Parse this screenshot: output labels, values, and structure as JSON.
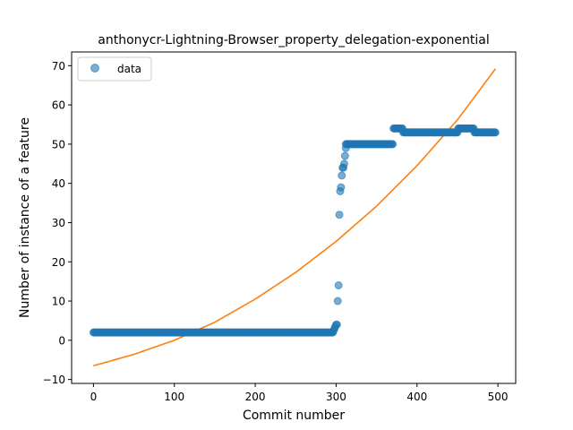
{
  "chart_data": {
    "type": "scatter",
    "title": "anthonycr-Lightning-Browser_property_delegation-exponential",
    "xlabel": "Commit number",
    "ylabel": "Number of instance of a feature",
    "xlim": [
      -27,
      522
    ],
    "ylim": [
      -11,
      73.5
    ],
    "xticks": [
      0,
      100,
      200,
      300,
      400,
      500
    ],
    "yticks": [
      -10,
      0,
      10,
      20,
      30,
      40,
      50,
      60,
      70
    ],
    "grid": false,
    "legend": {
      "position": "top-left",
      "entries": [
        "data"
      ]
    },
    "series": [
      {
        "name": "data",
        "kind": "scatter",
        "color": "#1f77b4",
        "segments": [
          {
            "x_start": 0,
            "x_end": 296,
            "y": 2
          },
          {
            "x_start": 312,
            "x_end": 370,
            "y": 50
          },
          {
            "x_start": 371,
            "x_end": 382,
            "y": 54
          },
          {
            "x_start": 383,
            "x_end": 450,
            "y": 53
          },
          {
            "x_start": 451,
            "x_end": 470,
            "y": 54
          },
          {
            "x_start": 471,
            "x_end": 497,
            "y": 53
          }
        ],
        "points": [
          [
            297,
            2.5
          ],
          [
            298,
            3
          ],
          [
            299,
            3.5
          ],
          [
            300,
            4
          ],
          [
            301,
            4
          ],
          [
            302,
            10
          ],
          [
            303,
            14
          ],
          [
            304,
            32
          ],
          [
            305,
            38
          ],
          [
            306,
            39
          ],
          [
            307,
            42
          ],
          [
            308,
            44
          ],
          [
            309,
            44
          ],
          [
            310,
            45
          ],
          [
            311,
            47
          ],
          [
            312,
            49
          ]
        ]
      },
      {
        "name": "",
        "kind": "line",
        "color": "#ff7f0e",
        "x_start": 0,
        "x_end": 497,
        "y_at": [
          [
            0,
            -6.5
          ],
          [
            50,
            -3.6
          ],
          [
            100,
            0
          ],
          [
            150,
            4.6
          ],
          [
            200,
            10.5
          ],
          [
            250,
            17.3
          ],
          [
            300,
            25.2
          ],
          [
            350,
            34.2
          ],
          [
            400,
            44.5
          ],
          [
            450,
            56.2
          ],
          [
            497,
            69.2
          ]
        ]
      }
    ]
  }
}
